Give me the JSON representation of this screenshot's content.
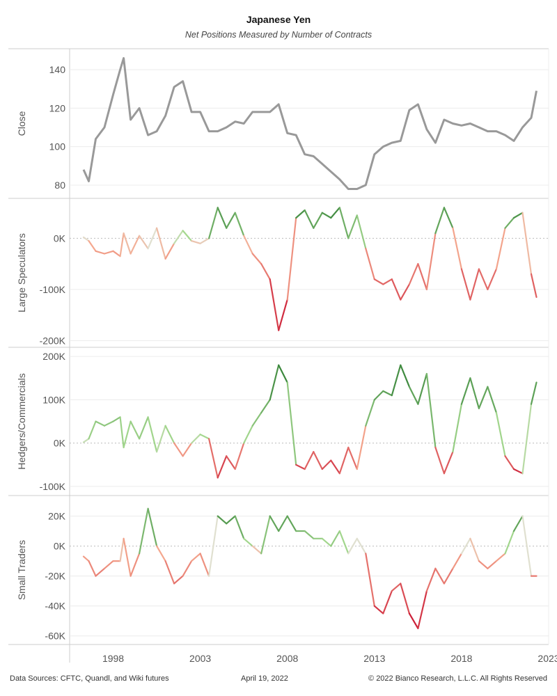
{
  "title": "Japanese Yen",
  "subtitle": "Net Positions Measured by Number of Contracts",
  "footer": {
    "source": "Data Sources: CFTC, Quandl, and Wiki futures",
    "date": "April 19, 2022",
    "copyright": "© 2022 Bianco Research, L.L.C. All Rights Reserved"
  },
  "colors": {
    "close_line": "#999999",
    "positive_dark": "#2e7d32",
    "positive_light": "#a5d88f",
    "neutral": "#e0e0d0",
    "negative_light": "#f5a98f",
    "negative_dark": "#c8102e",
    "grid": "#ececec",
    "zero_line": "#bbbbbb"
  },
  "chart_data": [
    {
      "type": "line",
      "ylabel": "Close",
      "ylim": [
        76,
        148
      ],
      "yticks": [
        80,
        100,
        120,
        140
      ],
      "ytick_labels": [
        "80",
        "100",
        "120",
        "140"
      ],
      "x": [
        1996.3,
        1996.6,
        1997.0,
        1997.5,
        1998.0,
        1998.4,
        1998.6,
        1999.0,
        1999.5,
        2000.0,
        2000.5,
        2001.0,
        2001.5,
        2002.0,
        2002.5,
        2003.0,
        2003.5,
        2004.0,
        2004.5,
        2005.0,
        2005.5,
        2006.0,
        2006.5,
        2007.0,
        2007.5,
        2008.0,
        2008.5,
        2009.0,
        2009.5,
        2010.0,
        2010.5,
        2011.0,
        2011.5,
        2012.0,
        2012.5,
        2013.0,
        2013.5,
        2014.0,
        2014.5,
        2015.0,
        2015.5,
        2016.0,
        2016.5,
        2017.0,
        2017.5,
        2018.0,
        2018.5,
        2019.0,
        2019.5,
        2020.0,
        2020.5,
        2021.0,
        2021.5,
        2022.0,
        2022.3
      ],
      "values": [
        88,
        82,
        104,
        110,
        127,
        140,
        146,
        114,
        120,
        106,
        108,
        116,
        131,
        134,
        118,
        118,
        108,
        108,
        110,
        113,
        112,
        118,
        118,
        118,
        122,
        107,
        106,
        96,
        95,
        91,
        87,
        83,
        78,
        78,
        80,
        96,
        100,
        102,
        103,
        119,
        122,
        109,
        102,
        114,
        112,
        111,
        112,
        110,
        108,
        108,
        106,
        103,
        110,
        115,
        129
      ]
    },
    {
      "type": "line",
      "ylabel": "Large Speculators",
      "ylim": [
        -205,
        70
      ],
      "yticks": [
        -200,
        -100,
        0
      ],
      "ytick_labels": [
        "-200K",
        "-100K",
        "0K"
      ],
      "x": [
        1996.3,
        1996.6,
        1997.0,
        1997.5,
        1998.0,
        1998.4,
        1998.6,
        1999.0,
        1999.5,
        2000.0,
        2000.5,
        2001.0,
        2001.5,
        2002.0,
        2002.5,
        2003.0,
        2003.5,
        2004.0,
        2004.5,
        2005.0,
        2005.5,
        2006.0,
        2006.5,
        2007.0,
        2007.5,
        2008.0,
        2008.5,
        2009.0,
        2009.5,
        2010.0,
        2010.5,
        2011.0,
        2011.5,
        2012.0,
        2012.5,
        2013.0,
        2013.5,
        2014.0,
        2014.5,
        2015.0,
        2015.5,
        2016.0,
        2016.5,
        2017.0,
        2017.5,
        2018.0,
        2018.5,
        2019.0,
        2019.5,
        2020.0,
        2020.5,
        2021.0,
        2021.5,
        2022.0,
        2022.3
      ],
      "values": [
        2,
        -5,
        -25,
        -30,
        -25,
        -35,
        10,
        -30,
        5,
        -20,
        20,
        -40,
        -10,
        15,
        -5,
        -10,
        0,
        60,
        20,
        50,
        5,
        -30,
        -50,
        -80,
        -180,
        -120,
        40,
        55,
        20,
        50,
        40,
        60,
        0,
        45,
        -20,
        -80,
        -90,
        -80,
        -120,
        -90,
        -50,
        -100,
        10,
        60,
        20,
        -60,
        -120,
        -60,
        -100,
        -60,
        20,
        40,
        50,
        -70,
        -115
      ]
    },
    {
      "type": "line",
      "ylabel": "Hedgers/Commercials",
      "ylim": [
        -105,
        205
      ],
      "yticks": [
        -100,
        0,
        100,
        200
      ],
      "ytick_labels": [
        "-100K",
        "0K",
        "100K",
        "200K"
      ],
      "x": [
        1996.3,
        1996.6,
        1997.0,
        1997.5,
        1998.0,
        1998.4,
        1998.6,
        1999.0,
        1999.5,
        2000.0,
        2000.5,
        2001.0,
        2001.5,
        2002.0,
        2002.5,
        2003.0,
        2003.5,
        2004.0,
        2004.5,
        2005.0,
        2005.5,
        2006.0,
        2006.5,
        2007.0,
        2007.5,
        2008.0,
        2008.5,
        2009.0,
        2009.5,
        2010.0,
        2010.5,
        2011.0,
        2011.5,
        2012.0,
        2012.5,
        2013.0,
        2013.5,
        2014.0,
        2014.5,
        2015.0,
        2015.5,
        2016.0,
        2016.5,
        2017.0,
        2017.5,
        2018.0,
        2018.5,
        2019.0,
        2019.5,
        2020.0,
        2020.5,
        2021.0,
        2021.5,
        2022.0,
        2022.3
      ],
      "values": [
        2,
        10,
        50,
        40,
        50,
        60,
        -10,
        50,
        10,
        60,
        -20,
        40,
        0,
        -30,
        0,
        20,
        10,
        -80,
        -30,
        -60,
        0,
        40,
        70,
        100,
        180,
        140,
        -50,
        -60,
        -20,
        -60,
        -40,
        -70,
        -10,
        -60,
        40,
        100,
        120,
        110,
        180,
        130,
        90,
        160,
        -10,
        -70,
        -20,
        90,
        150,
        80,
        130,
        70,
        -30,
        -60,
        -70,
        90,
        140
      ]
    },
    {
      "type": "line",
      "ylabel": "Small Traders",
      "ylim": [
        -62,
        30
      ],
      "yticks": [
        -60,
        -40,
        -20,
        0,
        20
      ],
      "ytick_labels": [
        "-60K",
        "-40K",
        "-20K",
        "0K",
        "20K"
      ],
      "x": [
        1996.3,
        1996.6,
        1997.0,
        1997.5,
        1998.0,
        1998.4,
        1998.6,
        1999.0,
        1999.5,
        2000.0,
        2000.5,
        2001.0,
        2001.5,
        2002.0,
        2002.5,
        2003.0,
        2003.5,
        2004.0,
        2004.5,
        2005.0,
        2005.5,
        2006.0,
        2006.5,
        2007.0,
        2007.5,
        2008.0,
        2008.5,
        2009.0,
        2009.5,
        2010.0,
        2010.5,
        2011.0,
        2011.5,
        2012.0,
        2012.5,
        2013.0,
        2013.5,
        2014.0,
        2014.5,
        2015.0,
        2015.5,
        2016.0,
        2016.5,
        2017.0,
        2017.5,
        2018.0,
        2018.5,
        2019.0,
        2019.5,
        2020.0,
        2020.5,
        2021.0,
        2021.5,
        2022.0,
        2022.3
      ],
      "values": [
        -7,
        -10,
        -20,
        -15,
        -10,
        -10,
        5,
        -20,
        -5,
        25,
        0,
        -10,
        -25,
        -20,
        -10,
        -5,
        -20,
        20,
        15,
        20,
        5,
        0,
        -5,
        20,
        10,
        20,
        10,
        10,
        5,
        5,
        0,
        10,
        -5,
        5,
        -5,
        -40,
        -45,
        -30,
        -25,
        -45,
        -55,
        -30,
        -15,
        -25,
        -15,
        -5,
        5,
        -10,
        -15,
        -10,
        -5,
        10,
        20,
        -20,
        -20
      ]
    }
  ],
  "x_axis": {
    "range": [
      1995.5,
      2023.0
    ],
    "ticks": [
      1998,
      2003,
      2008,
      2013,
      2018,
      2023
    ],
    "tick_labels": [
      "1998",
      "2003",
      "2008",
      "2013",
      "2018",
      "2023"
    ]
  }
}
